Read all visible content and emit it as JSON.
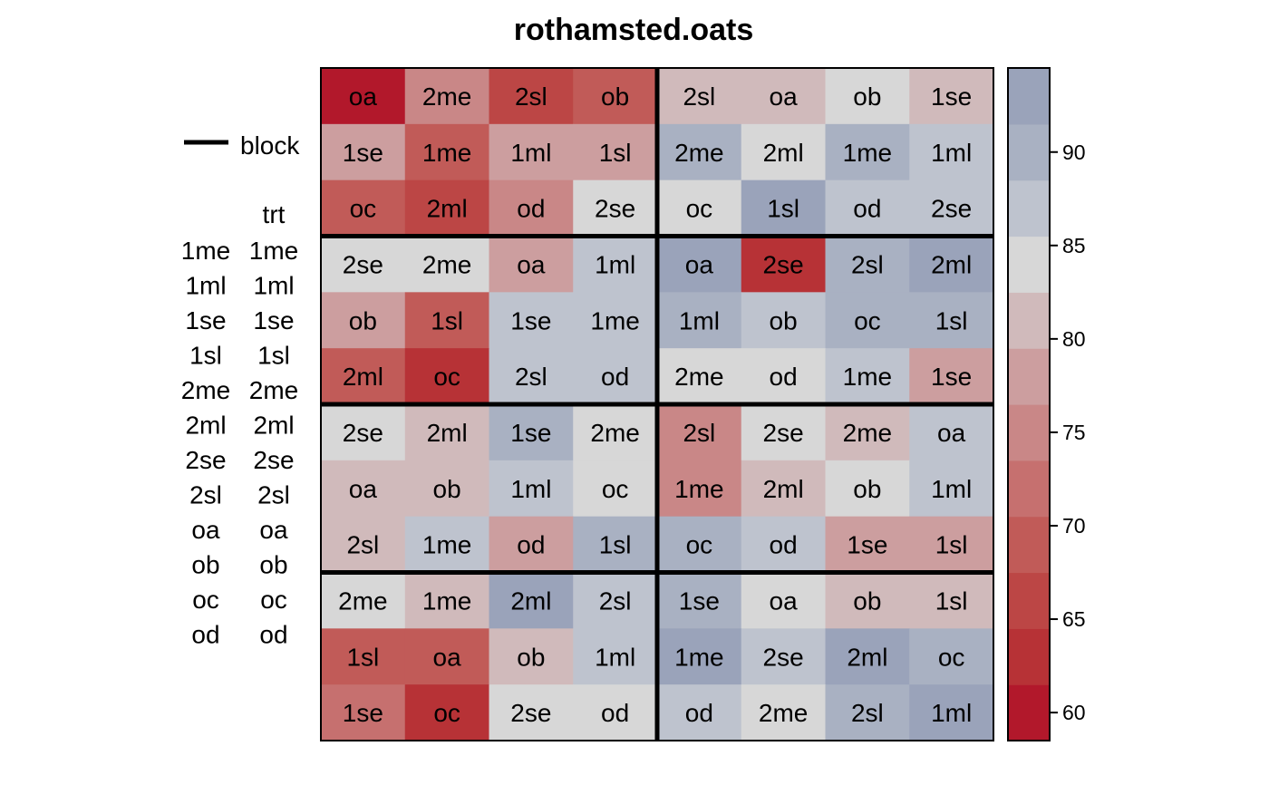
{
  "chart_data": {
    "type": "heatmap",
    "title": "rothamsted.oats",
    "rows": 12,
    "cols": 8,
    "cells": [
      {
        "label": "oa",
        "value": 60.5
      },
      {
        "label": "2me",
        "value": 73.8
      },
      {
        "label": "2sl",
        "value": 65.5
      },
      {
        "label": "ob",
        "value": 69.0
      },
      {
        "label": "2sl",
        "value": 80.5
      },
      {
        "label": "oa",
        "value": 80.3
      },
      {
        "label": "ob",
        "value": 83.0
      },
      {
        "label": "1se",
        "value": 80.0
      },
      {
        "label": "1se",
        "value": 78.0
      },
      {
        "label": "1me",
        "value": 68.0
      },
      {
        "label": "1ml",
        "value": 78.5
      },
      {
        "label": "1sl",
        "value": 79.0
      },
      {
        "label": "2me",
        "value": 88.5
      },
      {
        "label": "2ml",
        "value": 83.0
      },
      {
        "label": "1me",
        "value": 89.0
      },
      {
        "label": "1ml",
        "value": 86.0
      },
      {
        "label": "oc",
        "value": 67.5
      },
      {
        "label": "2ml",
        "value": 66.0
      },
      {
        "label": "od",
        "value": 74.0
      },
      {
        "label": "2se",
        "value": 83.0
      },
      {
        "label": "oc",
        "value": 83.5
      },
      {
        "label": "1sl",
        "value": 92.5
      },
      {
        "label": "od",
        "value": 86.0
      },
      {
        "label": "2se",
        "value": 86.5
      },
      {
        "label": "2se",
        "value": 83.0
      },
      {
        "label": "2me",
        "value": 83.0
      },
      {
        "label": "oa",
        "value": 77.5
      },
      {
        "label": "1ml",
        "value": 86.5
      },
      {
        "label": "oa",
        "value": 91.5
      },
      {
        "label": "2se",
        "value": 61.5
      },
      {
        "label": "2sl",
        "value": 89.0
      },
      {
        "label": "2ml",
        "value": 92.0
      },
      {
        "label": "ob",
        "value": 77.5
      },
      {
        "label": "1sl",
        "value": 68.0
      },
      {
        "label": "1se",
        "value": 86.5
      },
      {
        "label": "1me",
        "value": 86.5
      },
      {
        "label": "1ml",
        "value": 88.5
      },
      {
        "label": "ob",
        "value": 86.5
      },
      {
        "label": "oc",
        "value": 88.5
      },
      {
        "label": "1sl",
        "value": 88.5
      },
      {
        "label": "2ml",
        "value": 69.0
      },
      {
        "label": "oc",
        "value": 63.5
      },
      {
        "label": "2sl",
        "value": 86.5
      },
      {
        "label": "od",
        "value": 86.0
      },
      {
        "label": "2me",
        "value": 83.0
      },
      {
        "label": "od",
        "value": 83.0
      },
      {
        "label": "1me",
        "value": 86.5
      },
      {
        "label": "1se",
        "value": 79.0
      },
      {
        "label": "2se",
        "value": 83.0
      },
      {
        "label": "2ml",
        "value": 80.5
      },
      {
        "label": "1se",
        "value": 89.0
      },
      {
        "label": "2me",
        "value": 83.0
      },
      {
        "label": "2sl",
        "value": 73.5
      },
      {
        "label": "2se",
        "value": 83.0
      },
      {
        "label": "2me",
        "value": 80.0
      },
      {
        "label": "oa",
        "value": 86.0
      },
      {
        "label": "oa",
        "value": 80.5
      },
      {
        "label": "ob",
        "value": 80.5
      },
      {
        "label": "1ml",
        "value": 86.5
      },
      {
        "label": "oc",
        "value": 83.0
      },
      {
        "label": "1me",
        "value": 76.0
      },
      {
        "label": "2ml",
        "value": 80.0
      },
      {
        "label": "ob",
        "value": 83.0
      },
      {
        "label": "1ml",
        "value": 86.0
      },
      {
        "label": "2sl",
        "value": 80.0
      },
      {
        "label": "1me",
        "value": 86.5
      },
      {
        "label": "od",
        "value": 77.5
      },
      {
        "label": "1sl",
        "value": 89.0
      },
      {
        "label": "oc",
        "value": 88.5
      },
      {
        "label": "od",
        "value": 86.0
      },
      {
        "label": "1se",
        "value": 77.0
      },
      {
        "label": "1sl",
        "value": 79.0
      },
      {
        "label": "2me",
        "value": 83.0
      },
      {
        "label": "1me",
        "value": 80.0
      },
      {
        "label": "2ml",
        "value": 91.5
      },
      {
        "label": "2sl",
        "value": 86.5
      },
      {
        "label": "1se",
        "value": 89.0
      },
      {
        "label": "oa",
        "value": 83.0
      },
      {
        "label": "ob",
        "value": 80.0
      },
      {
        "label": "1sl",
        "value": 80.5
      },
      {
        "label": "1sl",
        "value": 67.5
      },
      {
        "label": "oa",
        "value": 70.0
      },
      {
        "label": "ob",
        "value": 79.5
      },
      {
        "label": "1ml",
        "value": 86.5
      },
      {
        "label": "1me",
        "value": 91.5
      },
      {
        "label": "2se",
        "value": 86.0
      },
      {
        "label": "2ml",
        "value": 91.5
      },
      {
        "label": "oc",
        "value": 88.5
      },
      {
        "label": "1se",
        "value": 72.0
      },
      {
        "label": "oc",
        "value": 63.5
      },
      {
        "label": "2se",
        "value": 83.0
      },
      {
        "label": "od",
        "value": 83.0
      },
      {
        "label": "od",
        "value": 86.5
      },
      {
        "label": "2me",
        "value": 83.0
      },
      {
        "label": "2sl",
        "value": 89.0
      },
      {
        "label": "1ml",
        "value": 92.0
      }
    ],
    "block_boundaries": {
      "vertical_after_col": [
        4
      ],
      "horizontal_after_row": [
        3,
        6,
        9
      ]
    },
    "colorkey": {
      "min": 58.5,
      "max": 94.5,
      "breaks": [
        58.5,
        61.5,
        64.5,
        67.5,
        70.5,
        73.5,
        76.5,
        79.5,
        82.5,
        85.5,
        88.5,
        91.5,
        94.5
      ],
      "colors": [
        "#B2182B",
        "#B73236",
        "#BC4645",
        "#C15B58",
        "#C6706F",
        "#C98787",
        "#CC9E9F",
        "#D0BABB",
        "#D7D7D7",
        "#BEC3CE",
        "#A9B1C2",
        "#9AA3BA",
        "#8B98B3"
      ],
      "ticks": [
        60,
        65,
        70,
        75,
        80,
        85,
        90
      ]
    },
    "legend": {
      "block_label": "block",
      "trt_header": "trt",
      "columns": [
        [
          "1me",
          "1ml",
          "1se",
          "1sl",
          "2me",
          "2ml",
          "2se",
          "2sl",
          "oa",
          "ob",
          "oc",
          "od"
        ],
        [
          "1me",
          "1ml",
          "1se",
          "1sl",
          "2me",
          "2ml",
          "2se",
          "2sl",
          "oa",
          "ob",
          "oc",
          "od"
        ]
      ]
    }
  }
}
